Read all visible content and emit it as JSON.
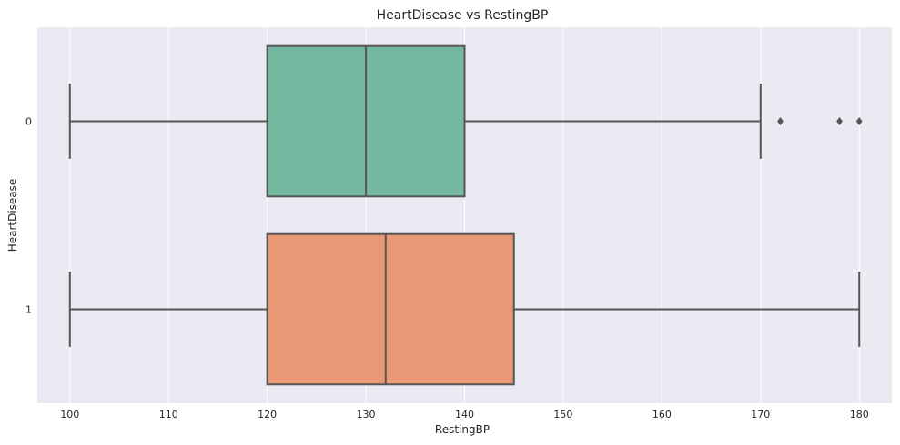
{
  "chart_data": {
    "type": "boxplot",
    "orientation": "horizontal",
    "title": "HeartDisease vs RestingBP",
    "xlabel": "RestingBP",
    "ylabel": "HeartDisease",
    "xlim": [
      96.7,
      183.3
    ],
    "xticks": [
      100,
      110,
      120,
      130,
      140,
      150,
      160,
      170,
      180
    ],
    "grid": true,
    "background": "#eaeaf2",
    "grid_color": "#ffffff",
    "line_color": "#555555",
    "groups": [
      {
        "label": "0",
        "color": "#74b7a0",
        "whisker_low": 100,
        "q1": 120,
        "median": 130,
        "q3": 140,
        "whisker_high": 170,
        "outliers": [
          172,
          178,
          180
        ]
      },
      {
        "label": "1",
        "color": "#e89875",
        "whisker_low": 100,
        "q1": 120,
        "median": 132,
        "q3": 145,
        "whisker_high": 180,
        "outliers": []
      }
    ]
  }
}
